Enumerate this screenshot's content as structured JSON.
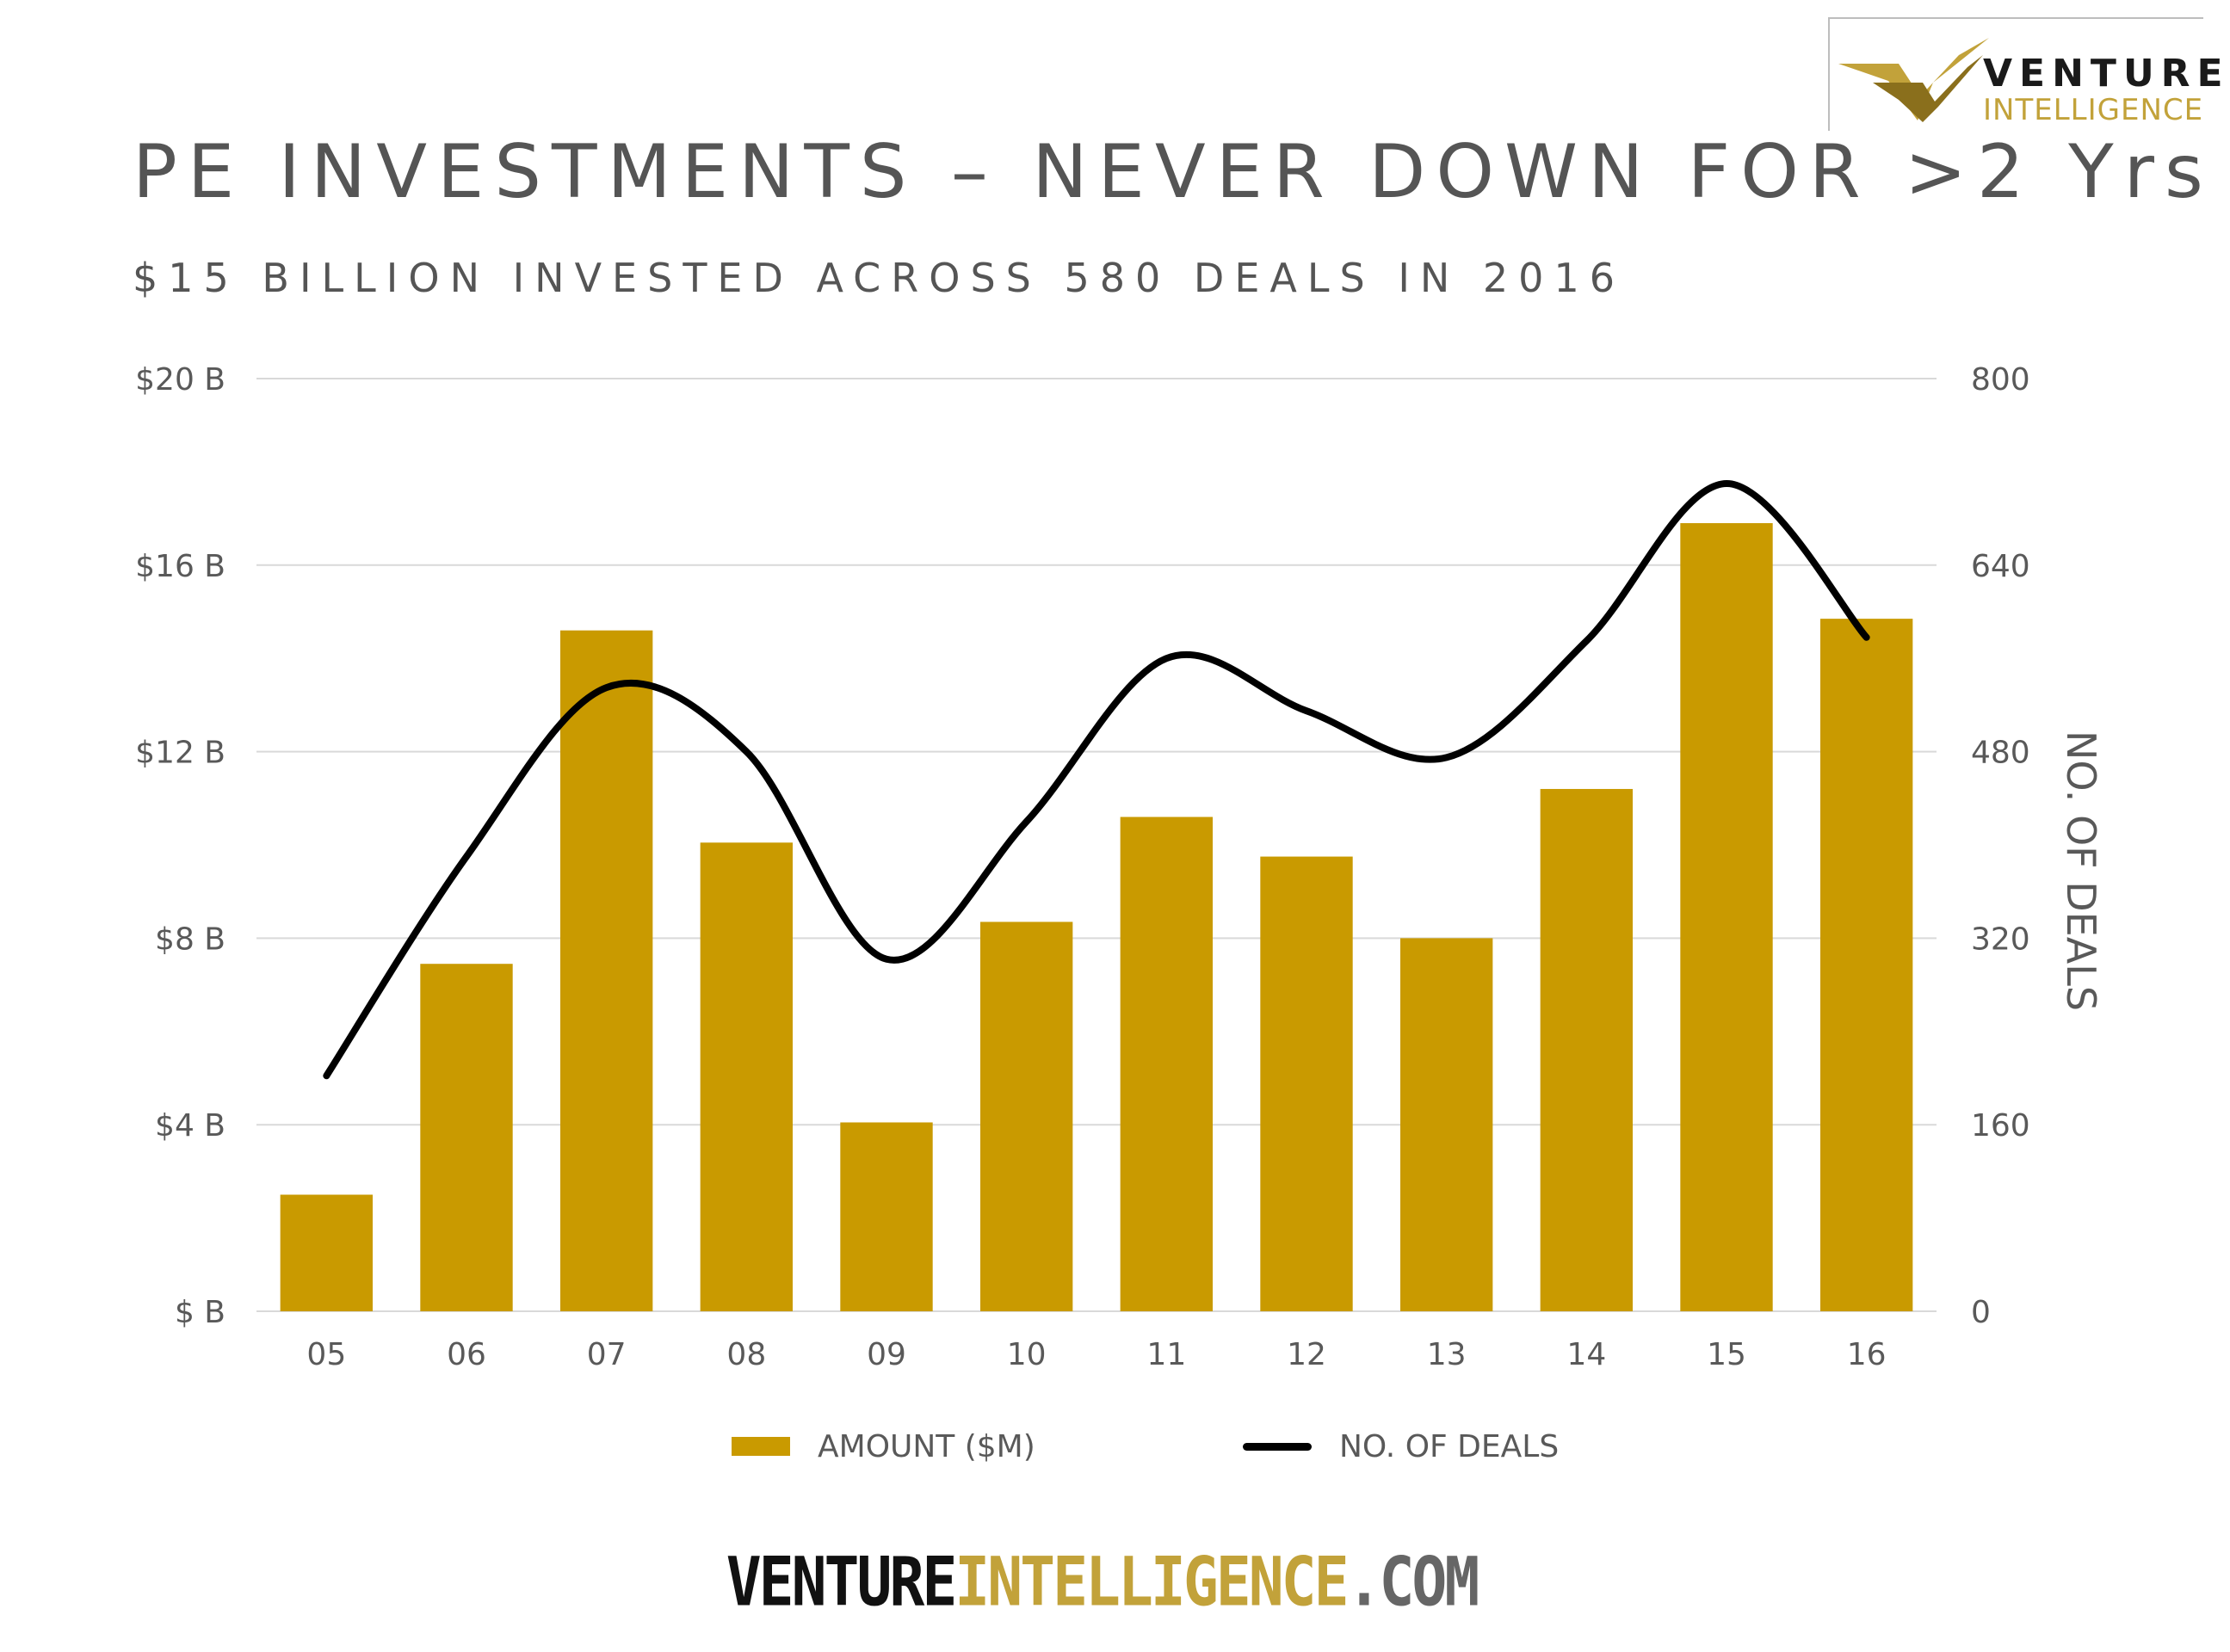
{
  "logo": {
    "word1": "VENTURE",
    "word2": "INTELLIGENCE"
  },
  "header": {
    "title": "PE INVESTMENTS – NEVER DOWN FOR >2 Yrs",
    "subtitle": "$15 BILLION INVESTED ACROSS 580 DEALS IN 2016"
  },
  "footer": {
    "part1": "VENTURE",
    "part2": "INTELLIGENCE",
    "part3": ".COM"
  },
  "chart_data": {
    "type": "bar",
    "categories": [
      "05",
      "06",
      "07",
      "08",
      "09",
      "10",
      "11",
      "12",
      "13",
      "14",
      "15",
      "16"
    ],
    "series": [
      {
        "name": "AMOUNT ($M)",
        "type": "bar",
        "axis": "left",
        "values": [
          2.5,
          7.45,
          14.6,
          10.05,
          4.05,
          8.35,
          10.6,
          9.75,
          8.0,
          11.2,
          16.9,
          14.85
        ]
      },
      {
        "name": "NO. OF DEALS",
        "type": "line",
        "axis": "right",
        "values": [
          202,
          390,
          535,
          480,
          302,
          420,
          560,
          515,
          475,
          575,
          710,
          578
        ]
      }
    ],
    "y_left": {
      "min": 0,
      "max": 20,
      "ticks": [
        0,
        4,
        8,
        12,
        16,
        20
      ],
      "tick_labels": [
        "$ B",
        "$4 B",
        "$8 B",
        "$12 B",
        "$16 B",
        "$20 B"
      ]
    },
    "y_right": {
      "min": 0,
      "max": 800,
      "ticks": [
        0,
        160,
        320,
        480,
        640,
        800
      ],
      "tick_labels": [
        "0",
        "160",
        "320",
        "480",
        "640",
        "800"
      ],
      "label": "NO. OF DEALS"
    },
    "grid": true,
    "legend_position": "bottom",
    "colors": {
      "bar": "#c99a00",
      "line": "#000000",
      "grid": "#d9d9d9",
      "tick_text": "#595959"
    }
  }
}
